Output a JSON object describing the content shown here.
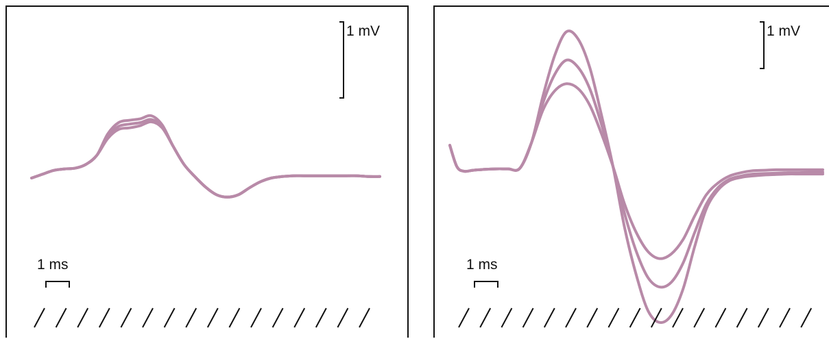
{
  "chart_data": [
    {
      "type": "line",
      "panel": "left",
      "scale_bars": {
        "amplitude": "1 mV",
        "time": "1 ms"
      },
      "x_range_ms": [
        0,
        16
      ],
      "series": [
        {
          "x": [
            0,
            0.5,
            1,
            1.5,
            2,
            2.5,
            3,
            3.5,
            4,
            4.5,
            5,
            5.5,
            6,
            6.5,
            7,
            7.5,
            8,
            8.5,
            9,
            9.5,
            10,
            10.5,
            11,
            11.5,
            12,
            12.5,
            13,
            13.5,
            14,
            14.5,
            15,
            15.5,
            16
          ],
          "values": [
            0,
            0.05,
            0.1,
            0.12,
            0.13,
            0.18,
            0.3,
            0.58,
            0.73,
            0.76,
            0.78,
            0.82,
            0.7,
            0.42,
            0.18,
            0.02,
            -0.12,
            -0.22,
            -0.25,
            -0.22,
            -0.13,
            -0.05,
            0,
            0.02,
            0.03,
            0.03,
            0.03,
            0.03,
            0.03,
            0.03,
            0.03,
            0.02,
            0.02
          ]
        },
        {
          "x": [
            0,
            0.5,
            1,
            1.5,
            2,
            2.5,
            3,
            3.5,
            4,
            4.5,
            5,
            5.5,
            6,
            6.5,
            7,
            7.5,
            8,
            8.5,
            9,
            9.5,
            10,
            10.5,
            11,
            11.5,
            12,
            12.5,
            13,
            13.5,
            14,
            14.5,
            15,
            15.5,
            16
          ],
          "values": [
            0,
            0.05,
            0.1,
            0.12,
            0.13,
            0.18,
            0.3,
            0.55,
            0.68,
            0.71,
            0.73,
            0.77,
            0.68,
            0.42,
            0.18,
            0.02,
            -0.12,
            -0.22,
            -0.25,
            -0.22,
            -0.13,
            -0.05,
            0,
            0.02,
            0.03,
            0.03,
            0.03,
            0.03,
            0.03,
            0.03,
            0.03,
            0.02,
            0.02
          ]
        },
        {
          "x": [
            0,
            0.5,
            1,
            1.5,
            2,
            2.5,
            3,
            3.5,
            4,
            4.5,
            5,
            5.5,
            6,
            6.5,
            7,
            7.5,
            8,
            8.5,
            9,
            9.5,
            10,
            10.5,
            11,
            11.5,
            12,
            12.5,
            13,
            13.5,
            14,
            14.5,
            15,
            15.5,
            16
          ],
          "values": [
            0,
            0.05,
            0.1,
            0.12,
            0.13,
            0.18,
            0.3,
            0.52,
            0.64,
            0.66,
            0.69,
            0.74,
            0.66,
            0.42,
            0.18,
            0.02,
            -0.12,
            -0.22,
            -0.25,
            -0.22,
            -0.13,
            -0.05,
            0,
            0.02,
            0.03,
            0.03,
            0.03,
            0.03,
            0.03,
            0.03,
            0.03,
            0.02,
            0.02
          ]
        }
      ]
    },
    {
      "type": "line",
      "panel": "right",
      "scale_bars": {
        "amplitude": "1 mV",
        "time": "1 ms"
      },
      "x_range_ms": [
        0,
        16
      ],
      "series": [
        {
          "x": [
            0,
            0.3,
            0.6,
            1,
            1.5,
            2,
            2.5,
            3,
            3.5,
            4,
            4.5,
            5,
            5.5,
            6,
            6.5,
            7,
            7.5,
            8,
            8.5,
            9,
            9.5,
            10,
            10.5,
            11,
            11.5,
            12,
            12.5,
            13,
            13.5,
            14,
            14.5,
            15,
            15.5,
            16
          ],
          "values": [
            0.55,
            0.1,
            0,
            0.02,
            0.04,
            0.05,
            0.05,
            0.06,
            0.6,
            1.6,
            2.45,
            2.95,
            2.8,
            2.2,
            1.2,
            0.1,
            -1.2,
            -2.2,
            -2.95,
            -3.2,
            -3.05,
            -2.5,
            -1.6,
            -0.8,
            -0.4,
            -0.2,
            -0.13,
            -0.1,
            -0.08,
            -0.07,
            -0.06,
            -0.06,
            -0.06,
            -0.06
          ]
        },
        {
          "x": [
            0,
            0.3,
            0.6,
            1,
            1.5,
            2,
            2.5,
            3,
            3.5,
            4,
            4.5,
            5,
            5.5,
            6,
            6.5,
            7,
            7.5,
            8,
            8.5,
            9,
            9.5,
            10,
            10.5,
            11,
            11.5,
            12,
            12.5,
            13,
            13.5,
            14,
            14.5,
            15,
            15.5,
            16
          ],
          "values": [
            0.55,
            0.1,
            0,
            0.02,
            0.04,
            0.05,
            0.05,
            0.06,
            0.6,
            1.45,
            2.05,
            2.35,
            2.2,
            1.75,
            1.0,
            0.1,
            -0.9,
            -1.7,
            -2.25,
            -2.45,
            -2.35,
            -1.95,
            -1.3,
            -0.7,
            -0.35,
            -0.17,
            -0.1,
            -0.06,
            -0.05,
            -0.04,
            -0.03,
            -0.03,
            -0.02,
            -0.02
          ]
        },
        {
          "x": [
            0,
            0.3,
            0.6,
            1,
            1.5,
            2,
            2.5,
            3,
            3.5,
            4,
            4.5,
            5,
            5.5,
            6,
            6.5,
            7,
            7.5,
            8,
            8.5,
            9,
            9.5,
            10,
            10.5,
            11,
            11.5,
            12,
            12.5,
            13,
            13.5,
            14,
            14.5,
            15,
            15.5,
            16
          ],
          "values": [
            0.55,
            0.1,
            0,
            0.02,
            0.04,
            0.05,
            0.05,
            0.06,
            0.6,
            1.3,
            1.7,
            1.85,
            1.75,
            1.4,
            0.8,
            0.1,
            -0.7,
            -1.3,
            -1.7,
            -1.85,
            -1.75,
            -1.45,
            -0.95,
            -0.5,
            -0.25,
            -0.1,
            -0.03,
            0.01,
            0.02,
            0.03,
            0.03,
            0.03,
            0.03,
            0.03
          ]
        }
      ]
    }
  ],
  "colors": {
    "trace": "#b88aa8",
    "axes": "#111111"
  }
}
